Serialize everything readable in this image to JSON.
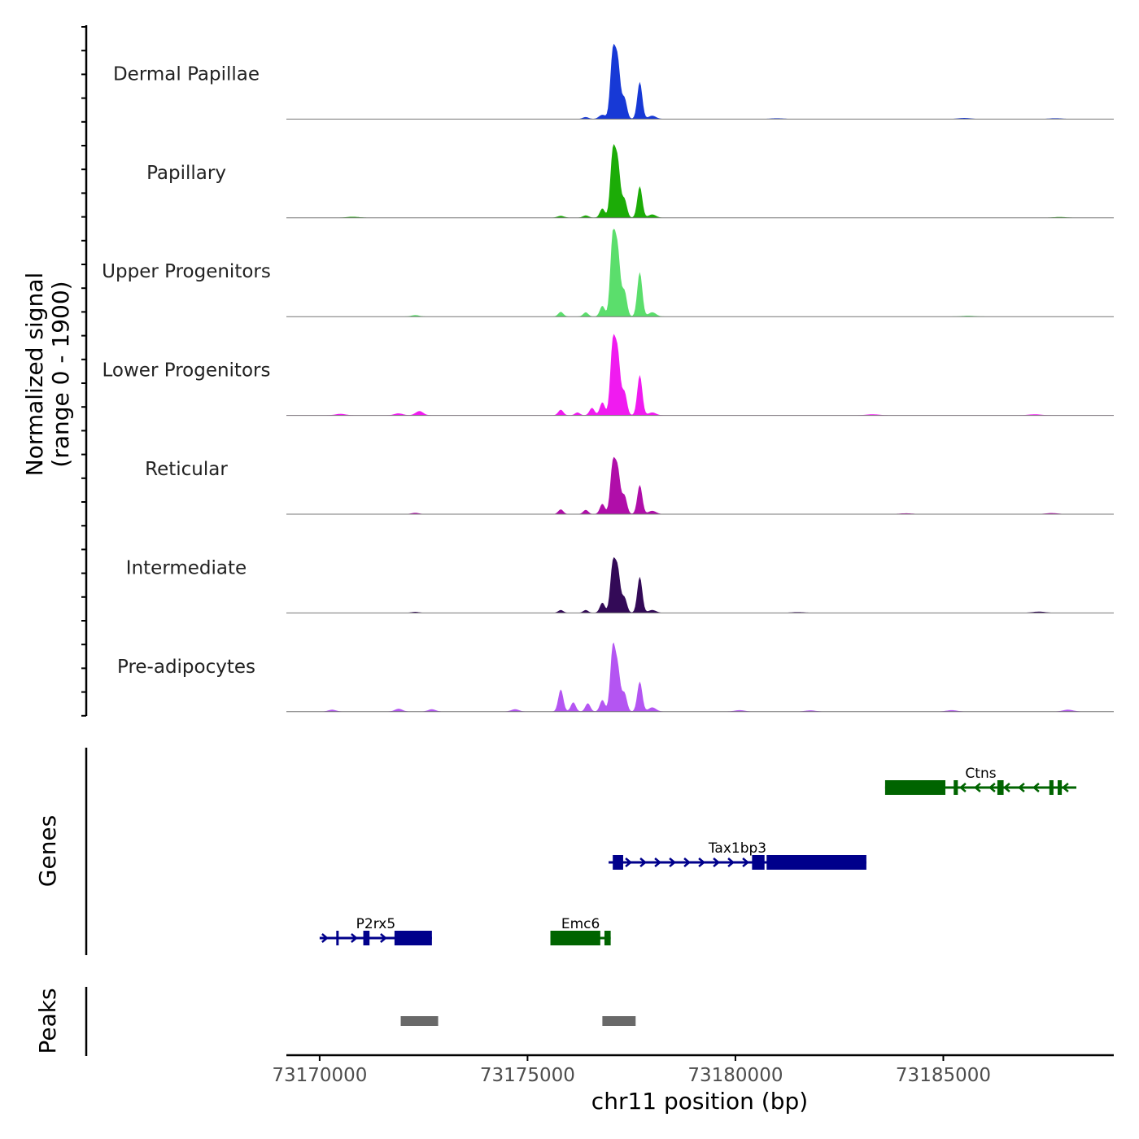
{
  "chart_data": {
    "type": "area",
    "title": "",
    "chromosome": "chr11",
    "xlabel": "chr11 position (bp)",
    "ylabel": "Normalized signal",
    "ylabel_sub": "(range 0 - 1900)",
    "y_range": [
      0,
      1900
    ],
    "xlim": [
      73169200,
      73189100
    ],
    "x_ticks": [
      73170000,
      73175000,
      73180000,
      73185000
    ],
    "x_tick_labels": [
      "73170000",
      "73175000",
      "73180000",
      "73185000"
    ],
    "coverage_tracks": [
      {
        "name": "Dermal Papillae",
        "color": "#1739d6",
        "peaks": [
          [
            73176400,
            40,
            70
          ],
          [
            73176800,
            90,
            80
          ],
          [
            73177050,
            1400,
            60
          ],
          [
            73177170,
            1200,
            60
          ],
          [
            73177330,
            450,
            60
          ],
          [
            73177700,
            800,
            60
          ],
          [
            73178000,
            70,
            90
          ],
          [
            73181000,
            15,
            150
          ],
          [
            73185500,
            20,
            150
          ],
          [
            73187700,
            15,
            150
          ]
        ]
      },
      {
        "name": "Papillary",
        "color": "#1cac07",
        "peaks": [
          [
            73175800,
            40,
            80
          ],
          [
            73176400,
            50,
            70
          ],
          [
            73176800,
            200,
            60
          ],
          [
            73177050,
            1380,
            60
          ],
          [
            73177170,
            1150,
            60
          ],
          [
            73177330,
            400,
            60
          ],
          [
            73177700,
            680,
            60
          ],
          [
            73178000,
            70,
            90
          ],
          [
            73170800,
            20,
            150
          ],
          [
            73187800,
            15,
            150
          ]
        ]
      },
      {
        "name": "Upper Progenitors",
        "color": "#5bde6c",
        "peaks": [
          [
            73172300,
            30,
            90
          ],
          [
            73175800,
            100,
            60
          ],
          [
            73176400,
            90,
            60
          ],
          [
            73176800,
            230,
            60
          ],
          [
            73177050,
            1700,
            60
          ],
          [
            73177170,
            1350,
            60
          ],
          [
            73177330,
            550,
            60
          ],
          [
            73177700,
            960,
            60
          ],
          [
            73178000,
            90,
            90
          ],
          [
            73185600,
            15,
            150
          ]
        ]
      },
      {
        "name": "Lower Progenitors",
        "color": "#f01bf0",
        "peaks": [
          [
            73170500,
            30,
            120
          ],
          [
            73171900,
            40,
            100
          ],
          [
            73172400,
            90,
            90
          ],
          [
            73175800,
            120,
            60
          ],
          [
            73176200,
            60,
            60
          ],
          [
            73176550,
            160,
            60
          ],
          [
            73176800,
            280,
            60
          ],
          [
            73177050,
            1520,
            60
          ],
          [
            73177170,
            1280,
            60
          ],
          [
            73177330,
            500,
            60
          ],
          [
            73177700,
            870,
            60
          ],
          [
            73178000,
            60,
            90
          ],
          [
            73183300,
            20,
            150
          ],
          [
            73187200,
            20,
            150
          ]
        ]
      },
      {
        "name": "Reticular",
        "color": "#b00ea9",
        "peaks": [
          [
            73172300,
            25,
            90
          ],
          [
            73175800,
            100,
            60
          ],
          [
            73176400,
            90,
            60
          ],
          [
            73176800,
            220,
            60
          ],
          [
            73177050,
            1060,
            60
          ],
          [
            73177170,
            920,
            60
          ],
          [
            73177330,
            400,
            60
          ],
          [
            73177700,
            630,
            60
          ],
          [
            73178000,
            70,
            90
          ],
          [
            73184100,
            15,
            150
          ],
          [
            73187600,
            20,
            150
          ]
        ]
      },
      {
        "name": "Intermediate",
        "color": "#330a57",
        "peaks": [
          [
            73172300,
            20,
            90
          ],
          [
            73175800,
            60,
            60
          ],
          [
            73176400,
            60,
            60
          ],
          [
            73176800,
            220,
            60
          ],
          [
            73177050,
            1030,
            60
          ],
          [
            73177170,
            900,
            60
          ],
          [
            73177330,
            330,
            60
          ],
          [
            73177700,
            780,
            60
          ],
          [
            73178000,
            60,
            90
          ],
          [
            73181500,
            15,
            150
          ],
          [
            73187300,
            25,
            150
          ]
        ]
      },
      {
        "name": "Pre-adipocytes",
        "color": "#b455f2",
        "peaks": [
          [
            73170300,
            40,
            90
          ],
          [
            73171900,
            60,
            90
          ],
          [
            73172700,
            50,
            90
          ],
          [
            73174700,
            50,
            90
          ],
          [
            73175800,
            480,
            60
          ],
          [
            73176100,
            200,
            60
          ],
          [
            73176450,
            180,
            60
          ],
          [
            73176800,
            250,
            60
          ],
          [
            73177050,
            1350,
            60
          ],
          [
            73177170,
            900,
            60
          ],
          [
            73177330,
            400,
            60
          ],
          [
            73177700,
            650,
            60
          ],
          [
            73178000,
            90,
            90
          ],
          [
            73180100,
            30,
            120
          ],
          [
            73181800,
            25,
            120
          ],
          [
            73185200,
            30,
            120
          ],
          [
            73188000,
            40,
            120
          ]
        ]
      }
    ],
    "genes_track_label": "Genes",
    "genes": [
      {
        "name": "P2rx5",
        "strand": "+",
        "color": "#00008b",
        "row": 3,
        "start": 73170000,
        "end": 73172700,
        "exons": [
          [
            73170400,
            73170450
          ],
          [
            73171050,
            73171200
          ],
          [
            73171800,
            73172700
          ]
        ]
      },
      {
        "name": "Emc6",
        "strand": "-",
        "color": "#006400",
        "row": 3,
        "start": 73175550,
        "end": 73177000,
        "exons": [
          [
            73175550,
            73176750
          ],
          [
            73176850,
            73177000
          ]
        ]
      },
      {
        "name": "Tax1bp3",
        "strand": "+",
        "color": "#00008b",
        "row": 2,
        "start": 73176950,
        "end": 73183150,
        "exons": [
          [
            73177050,
            73177300
          ],
          [
            73180400,
            73180700
          ],
          [
            73180750,
            73183150
          ]
        ]
      },
      {
        "name": "Ctns",
        "strand": "-",
        "color": "#006400",
        "row": 1,
        "start": 73183600,
        "end": 73188200,
        "exons": [
          [
            73183600,
            73185050
          ],
          [
            73185250,
            73185350
          ],
          [
            73186300,
            73186450
          ],
          [
            73187550,
            73187650
          ],
          [
            73187750,
            73187850
          ]
        ]
      }
    ],
    "peaks_track_label": "Peaks",
    "peak_regions": [
      [
        73171950,
        73172850
      ],
      [
        73176800,
        73177600
      ]
    ]
  }
}
